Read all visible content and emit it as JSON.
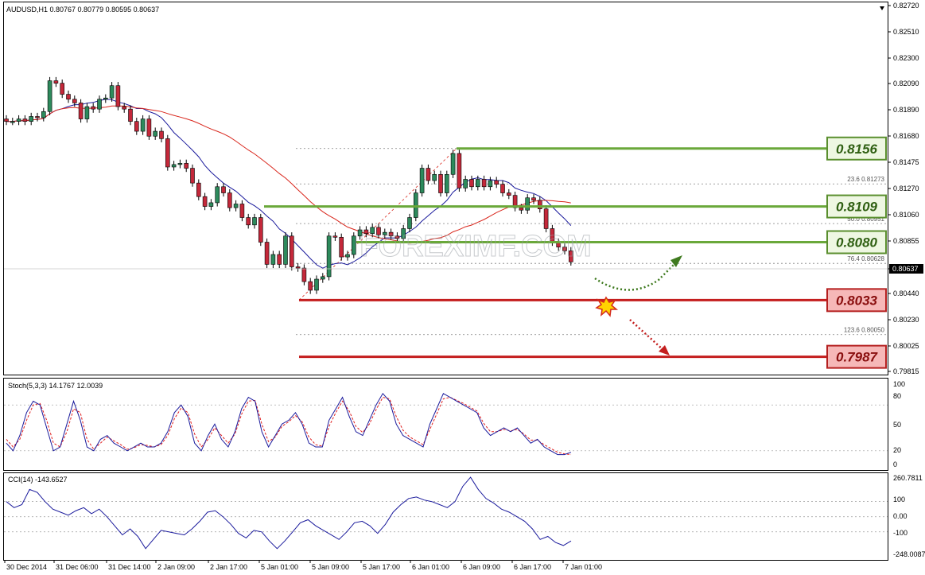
{
  "symbol_header": "AUDUSD,H1  0.80767 0.80779 0.80595 0.80637",
  "watermark": "FOREXIMF.COM",
  "colors": {
    "bull": "#2d8a5c",
    "bear": "#c4283a",
    "ma_fast": "#1a1a9c",
    "ma_slow": "#d9261c",
    "resistance": "#6aa83a",
    "support": "#c41e1e",
    "fib": "#808080"
  },
  "chart_data": [
    {
      "type": "candlestick",
      "name": "price",
      "ylim": [
        0.79745,
        0.8272
      ],
      "price_ticks": [
        "0.82720",
        "0.82510",
        "0.82300",
        "0.82090",
        "0.81890",
        "0.81680",
        "0.81475",
        "0.81270",
        "0.81060",
        "0.80855",
        "0.80637",
        "0.80440",
        "0.80230",
        "0.80025",
        "0.79815"
      ],
      "current_price": "0.80637",
      "x_labels": [
        "30 Dec 2014",
        "31 Dec 06:00",
        "31 Dec 14:00",
        "2 Jan 09:00",
        "2 Jan 17:00",
        "5 Jan 01:00",
        "5 Jan 09:00",
        "5 Jan 17:00",
        "6 Jan 01:00",
        "6 Jan 09:00",
        "6 Jan 17:00",
        "7 Jan 01:00"
      ],
      "close": [
        0.8178,
        0.8178,
        0.818,
        0.8178,
        0.8182,
        0.8181,
        0.8186,
        0.8211,
        0.8209,
        0.82,
        0.8196,
        0.8193,
        0.818,
        0.819,
        0.8188,
        0.8196,
        0.8197,
        0.8207,
        0.819,
        0.8188,
        0.8178,
        0.817,
        0.818,
        0.8166,
        0.817,
        0.8164,
        0.8141,
        0.8143,
        0.8144,
        0.814,
        0.8128,
        0.8117,
        0.8109,
        0.8112,
        0.8125,
        0.812,
        0.8108,
        0.8111,
        0.81,
        0.8094,
        0.81,
        0.808,
        0.8062,
        0.807,
        0.8062,
        0.8085,
        0.806,
        0.8059,
        0.8048,
        0.8041,
        0.805,
        0.8052,
        0.8085,
        0.8084,
        0.8068,
        0.807,
        0.8085,
        0.809,
        0.8087,
        0.8092,
        0.8086,
        0.8088,
        0.8085,
        0.8083,
        0.8091,
        0.81,
        0.812,
        0.814,
        0.813,
        0.8135,
        0.812,
        0.8135,
        0.8152,
        0.8124,
        0.8131,
        0.8125,
        0.8131,
        0.8125,
        0.813,
        0.8127,
        0.812,
        0.8118,
        0.8108,
        0.8106,
        0.8116,
        0.8114,
        0.8107,
        0.8091,
        0.808,
        0.8076,
        0.8073,
        0.8064
      ],
      "fib_levels": [
        {
          "label": "23.6 0.81273",
          "value": 0.81273
        },
        {
          "label": "50.0 0.80951",
          "value": 0.80951
        },
        {
          "label": "76.4 0.80628",
          "value": 0.80628
        },
        {
          "label": "123.6 0.80050",
          "value": 0.8005
        }
      ],
      "levels": [
        {
          "label": "0.8156",
          "value": 0.8156,
          "kind": "resistance"
        },
        {
          "label": "0.8109",
          "value": 0.8109,
          "kind": "resistance"
        },
        {
          "label": "0.8080",
          "value": 0.808,
          "kind": "resistance"
        },
        {
          "label": "0.8033",
          "value": 0.8033,
          "kind": "support"
        },
        {
          "label": "0.7987",
          "value": 0.7987,
          "kind": "support"
        }
      ]
    },
    {
      "type": "line",
      "name": "stochastic",
      "label": "Stoch(5,3,3) 14.1767 12.0039",
      "ylim": [
        0,
        100
      ],
      "ticks": [
        "100",
        "80",
        "50",
        "20",
        "0"
      ],
      "main": [
        30,
        20,
        40,
        70,
        85,
        80,
        50,
        20,
        25,
        55,
        85,
        60,
        25,
        20,
        35,
        40,
        30,
        25,
        20,
        25,
        30,
        25,
        25,
        30,
        45,
        70,
        80,
        65,
        30,
        20,
        40,
        55,
        35,
        25,
        45,
        75,
        90,
        85,
        45,
        25,
        40,
        55,
        60,
        70,
        55,
        30,
        25,
        25,
        60,
        75,
        90,
        65,
        45,
        40,
        60,
        80,
        95,
        85,
        55,
        40,
        35,
        30,
        25,
        55,
        75,
        95,
        90,
        85,
        80,
        75,
        70,
        50,
        40,
        45,
        50,
        45,
        50,
        40,
        30,
        35,
        25,
        20,
        15,
        15,
        18
      ],
      "signal": [
        35,
        25,
        35,
        60,
        80,
        82,
        60,
        30,
        25,
        45,
        75,
        70,
        35,
        22,
        30,
        38,
        33,
        28,
        22,
        24,
        28,
        27,
        25,
        28,
        40,
        62,
        76,
        70,
        42,
        25,
        35,
        50,
        40,
        30,
        42,
        68,
        85,
        86,
        55,
        32,
        38,
        52,
        58,
        66,
        58,
        38,
        28,
        26,
        52,
        70,
        85,
        72,
        52,
        44,
        55,
        74,
        90,
        88,
        65,
        47,
        38,
        33,
        28,
        48,
        68,
        88,
        90,
        86,
        82,
        77,
        72,
        56,
        45,
        45,
        48,
        46,
        48,
        42,
        34,
        34,
        28,
        23,
        18,
        16,
        15
      ]
    },
    {
      "type": "line",
      "name": "cci",
      "label": "CCI(14) -143.6527",
      "ylim": [
        -300,
        300
      ],
      "ticks": [
        "260.7811",
        "100",
        "0.00",
        "-100",
        "-248.0087"
      ],
      "values": [
        100,
        60,
        80,
        180,
        160,
        100,
        50,
        30,
        10,
        40,
        60,
        20,
        50,
        0,
        -60,
        -120,
        -80,
        -130,
        -210,
        -150,
        -90,
        -100,
        -110,
        -120,
        -80,
        -30,
        30,
        40,
        0,
        -50,
        -110,
        -140,
        -90,
        -100,
        -160,
        -210,
        -160,
        -100,
        -40,
        -20,
        -60,
        -90,
        -120,
        -150,
        -100,
        -40,
        -30,
        -60,
        -110,
        -50,
        30,
        80,
        120,
        130,
        110,
        100,
        80,
        60,
        100,
        200,
        260,
        180,
        120,
        90,
        50,
        30,
        0,
        -30,
        -80,
        -150,
        -130,
        -170,
        -190,
        -160
      ]
    }
  ]
}
